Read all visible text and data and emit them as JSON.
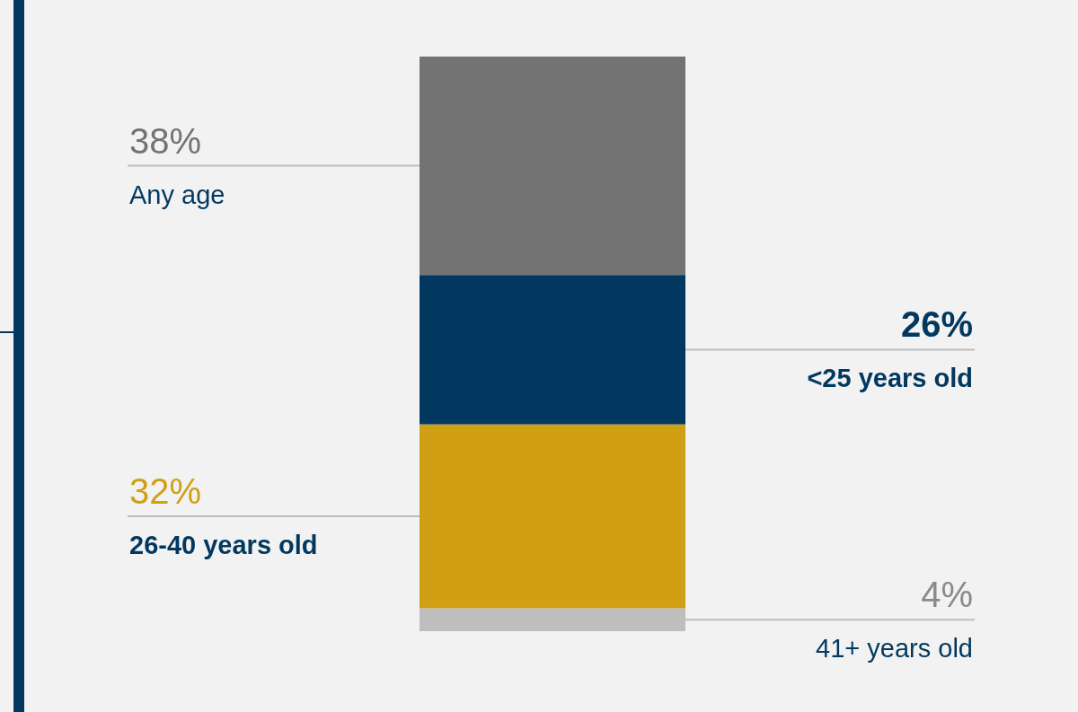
{
  "chart_data": {
    "type": "bar",
    "stacked": true,
    "categories": [
      null
    ],
    "series": [
      {
        "name": "41+ years old",
        "color": "#bebebe",
        "values": [
          4
        ],
        "value_labels": [
          "4%"
        ]
      },
      {
        "name": "26-40 years old",
        "color": "#d19f13",
        "values": [
          32
        ],
        "value_labels": [
          "32%"
        ]
      },
      {
        "name": "<25 years old",
        "color": "#02385f",
        "values": [
          26
        ],
        "value_labels": [
          "26%"
        ]
      },
      {
        "name": "Any age",
        "color": "#727372",
        "values": [
          38
        ],
        "value_labels": [
          "38%"
        ]
      }
    ]
  }
}
